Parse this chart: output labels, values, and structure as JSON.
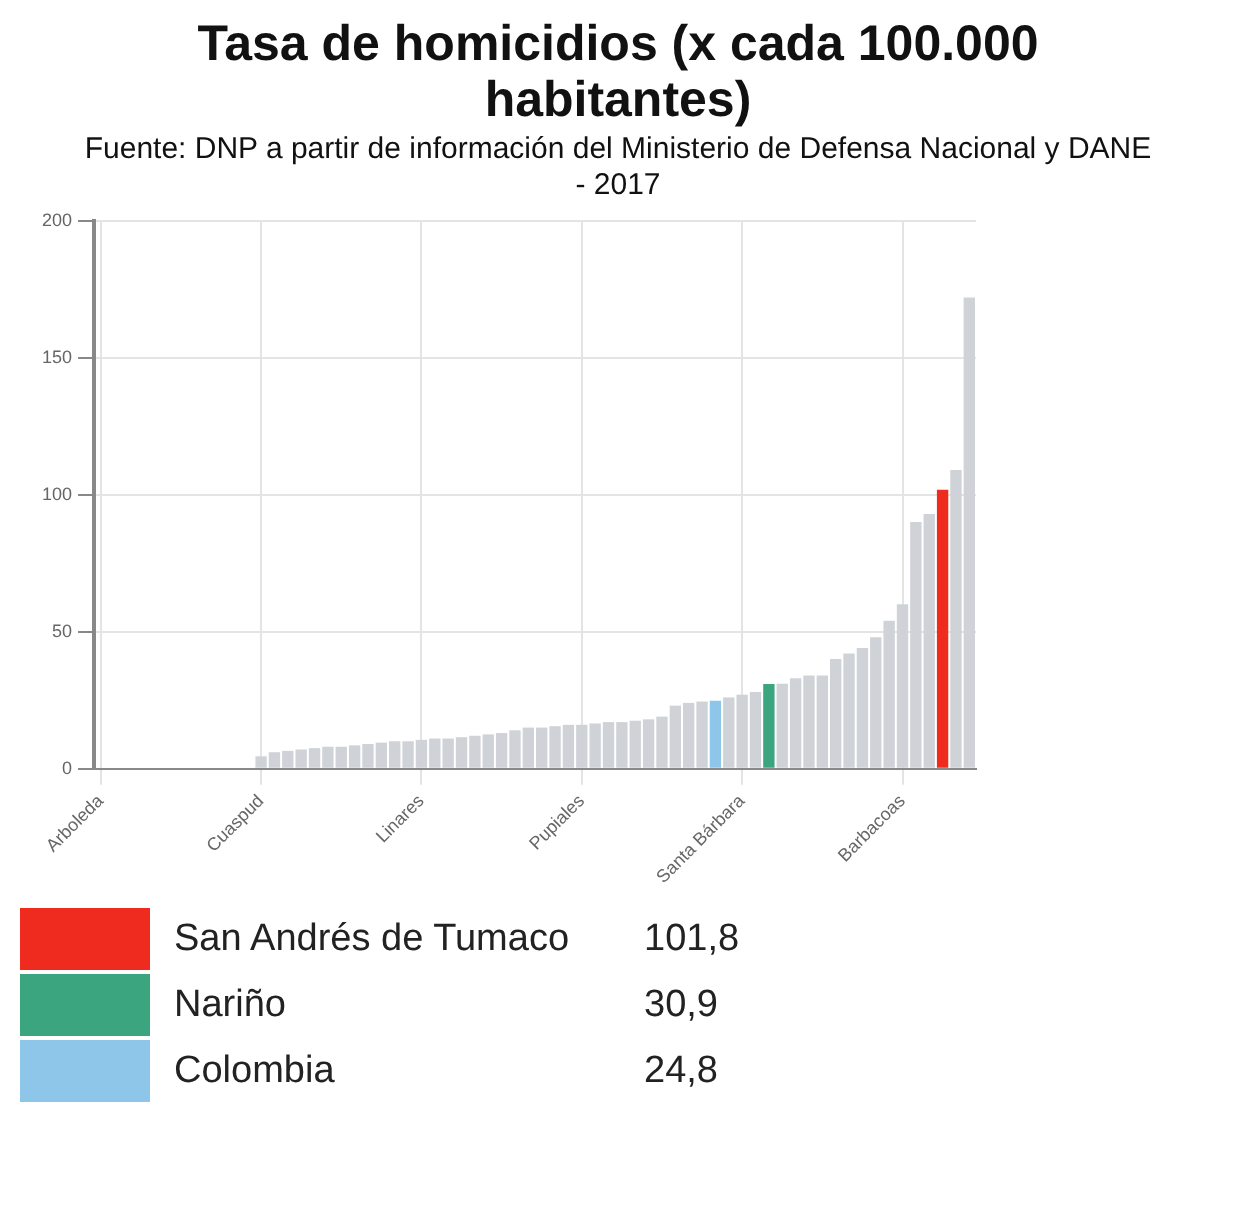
{
  "chart_data": {
    "type": "bar",
    "title": "Tasa de homicidios (x cada 100.000 habitantes)",
    "subtitle": "Fuente: DNP a partir de información del Ministerio de Defensa Nacional y DANE - 2017",
    "categories": [
      "Arboleda",
      null,
      null,
      null,
      null,
      null,
      null,
      null,
      null,
      null,
      null,
      null,
      "Cuaspud",
      null,
      null,
      null,
      null,
      null,
      null,
      null,
      null,
      null,
      null,
      null,
      "Linares",
      null,
      null,
      null,
      null,
      null,
      null,
      null,
      null,
      null,
      null,
      null,
      "Pupiales",
      null,
      null,
      null,
      null,
      null,
      null,
      null,
      null,
      null,
      null,
      null,
      "Santa Bárbara",
      null,
      null,
      null,
      null,
      null,
      null,
      null,
      null,
      null,
      null,
      null,
      "Barbacoas",
      null,
      null,
      null,
      null,
      null
    ],
    "series": [
      {
        "color": "#cfd3d8",
        "values": [
          0,
          0,
          0,
          0,
          0,
          0,
          0,
          0,
          0,
          0,
          0,
          0,
          4.5,
          6,
          6.5,
          7,
          7.5,
          8,
          8,
          8.5,
          9,
          9.5,
          10,
          10,
          10.5,
          11,
          11,
          11.5,
          12,
          12.5,
          13,
          14,
          15,
          15,
          15.5,
          16,
          16,
          16.5,
          17,
          17,
          17.5,
          18,
          19,
          23,
          24,
          24.5,
          null,
          26,
          27,
          28,
          null,
          31,
          33,
          34,
          34,
          40,
          42,
          44,
          48,
          54,
          60,
          90,
          93,
          null,
          109,
          172
        ]
      },
      {
        "name": "San Andrés de Tumaco",
        "color": "#ef2a1f",
        "values": [
          null,
          null,
          null,
          null,
          null,
          null,
          null,
          null,
          null,
          null,
          null,
          null,
          null,
          null,
          null,
          null,
          null,
          null,
          null,
          null,
          null,
          null,
          null,
          null,
          null,
          null,
          null,
          null,
          null,
          null,
          null,
          null,
          null,
          null,
          null,
          null,
          null,
          null,
          null,
          null,
          null,
          null,
          null,
          null,
          null,
          null,
          null,
          null,
          null,
          null,
          null,
          null,
          null,
          null,
          null,
          null,
          null,
          null,
          null,
          null,
          null,
          null,
          null,
          101.8,
          null,
          null
        ]
      },
      {
        "name": "Nariño",
        "color": "#3aa57e",
        "values": [
          null,
          null,
          null,
          null,
          null,
          null,
          null,
          null,
          null,
          null,
          null,
          null,
          null,
          null,
          null,
          null,
          null,
          null,
          null,
          null,
          null,
          null,
          null,
          null,
          null,
          null,
          null,
          null,
          null,
          null,
          null,
          null,
          null,
          null,
          null,
          null,
          null,
          null,
          null,
          null,
          null,
          null,
          null,
          null,
          null,
          null,
          null,
          null,
          null,
          null,
          30.9,
          null,
          null,
          null,
          null,
          null,
          null,
          null,
          null,
          null,
          null,
          null,
          null,
          null,
          null,
          null
        ]
      },
      {
        "name": "Colombia",
        "color": "#8ec6ea",
        "values": [
          null,
          null,
          null,
          null,
          null,
          null,
          null,
          null,
          null,
          null,
          null,
          null,
          null,
          null,
          null,
          null,
          null,
          null,
          null,
          null,
          null,
          null,
          null,
          null,
          null,
          null,
          null,
          null,
          null,
          null,
          null,
          null,
          null,
          null,
          null,
          null,
          null,
          null,
          null,
          null,
          null,
          null,
          null,
          null,
          null,
          null,
          24.8,
          null,
          null,
          null,
          null,
          null,
          null,
          null,
          null,
          null,
          null,
          null,
          null,
          null,
          null,
          null,
          null,
          null,
          null,
          null
        ]
      }
    ],
    "annotations": [
      "101,8",
      "30,9",
      "24,8"
    ],
    "ylim": [
      0,
      200
    ],
    "yticks": [
      0,
      50,
      100,
      150,
      200
    ],
    "grid": true,
    "legend": "bottom"
  }
}
